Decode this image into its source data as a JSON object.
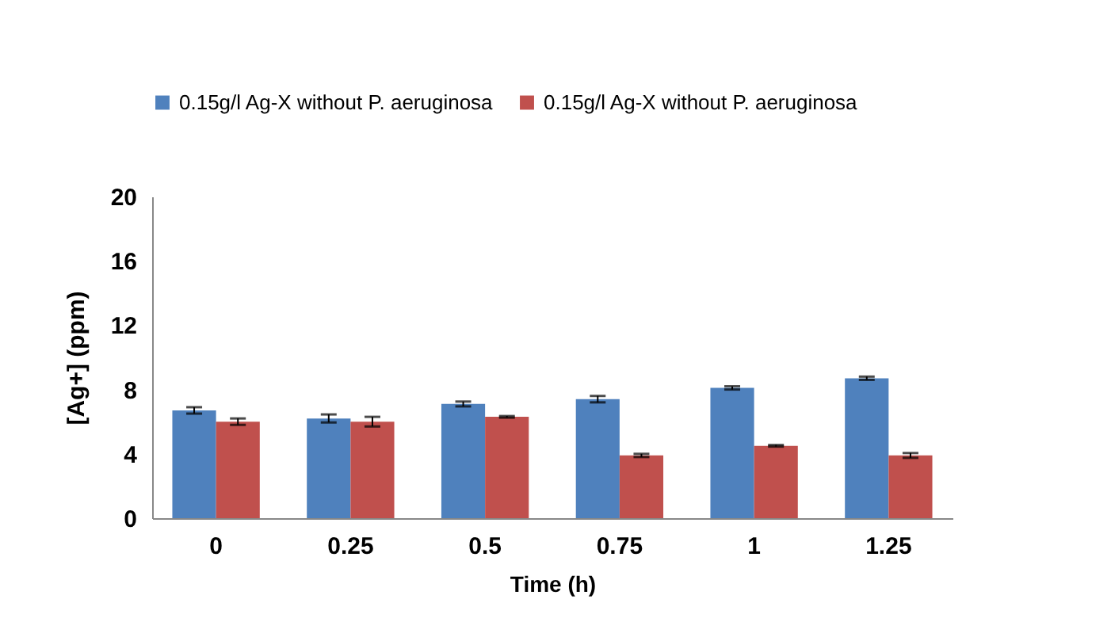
{
  "chart_data": {
    "type": "bar",
    "categories": [
      "0",
      "0.25",
      "0.5",
      "0.75",
      "1",
      "1.25"
    ],
    "series": [
      {
        "name": "0.15g/l Ag-X without P. aeruginosa",
        "color": "#4f81bd",
        "values": [
          6.7,
          6.2,
          7.1,
          7.4,
          8.1,
          8.7
        ],
        "errors": [
          0.2,
          0.25,
          0.15,
          0.2,
          0.1,
          0.1
        ]
      },
      {
        "name": "0.15g/l Ag-X without P. aeruginosa",
        "color": "#c0504d",
        "values": [
          6.0,
          6.0,
          6.3,
          3.9,
          4.5,
          3.9
        ],
        "errors": [
          0.2,
          0.3,
          0.05,
          0.1,
          0.05,
          0.15
        ]
      }
    ],
    "xlabel": "Time (h)",
    "ylabel": "[Ag+] (ppm)",
    "ylim": [
      0,
      20
    ],
    "yticks": [
      0,
      4,
      8,
      12,
      16,
      20
    ],
    "grid": false,
    "legend": "top"
  }
}
